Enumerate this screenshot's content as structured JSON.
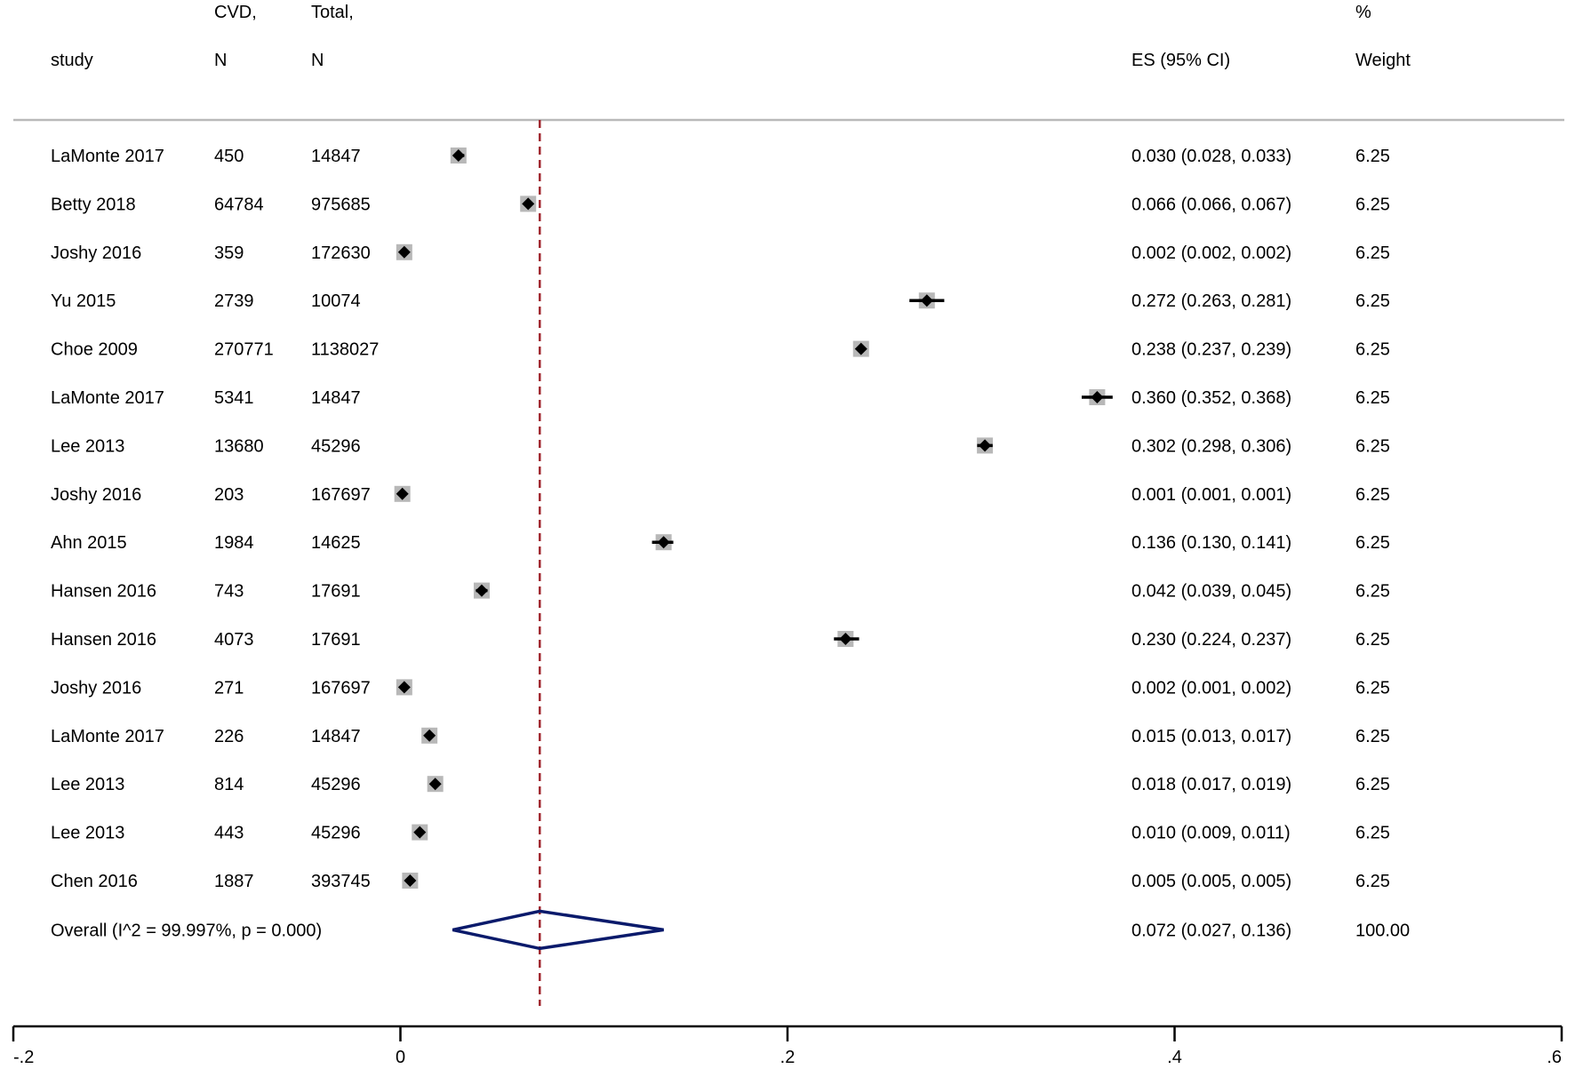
{
  "header": {
    "study": "study",
    "cvd_line1": "CVD,",
    "cvd_line2": "N",
    "total_line1": "Total,",
    "total_line2": "N",
    "es": "ES (95% CI)",
    "weight_line1": "%",
    "weight_line2": "Weight"
  },
  "colors": {
    "reference_line": "#a0262e",
    "overall_diamond": "#0a1a6b",
    "weight_box": "#b8b8b8",
    "marker": "#000000"
  },
  "chart_data": {
    "type": "forest",
    "xlim": [
      -0.2,
      0.6
    ],
    "x_ticks": [
      -0.2,
      0,
      0.2,
      0.4,
      0.6
    ],
    "x_tick_labels": [
      "-.2",
      "0",
      ".2",
      ".4",
      ".6"
    ],
    "reference_line": 0.072,
    "studies": [
      {
        "study": "LaMonte 2017",
        "cvd_n": "450",
        "total_n": "14847",
        "es": 0.03,
        "lo": 0.028,
        "hi": 0.033,
        "es_text": "0.030 (0.028, 0.033)",
        "weight": "6.25"
      },
      {
        "study": "Betty 2018",
        "cvd_n": "64784",
        "total_n": "975685",
        "es": 0.066,
        "lo": 0.066,
        "hi": 0.067,
        "es_text": "0.066 (0.066, 0.067)",
        "weight": "6.25"
      },
      {
        "study": "Joshy 2016",
        "cvd_n": "359",
        "total_n": "172630",
        "es": 0.002,
        "lo": 0.002,
        "hi": 0.002,
        "es_text": "0.002 (0.002, 0.002)",
        "weight": "6.25"
      },
      {
        "study": "Yu 2015",
        "cvd_n": "2739",
        "total_n": "10074",
        "es": 0.272,
        "lo": 0.263,
        "hi": 0.281,
        "es_text": "0.272 (0.263, 0.281)",
        "weight": "6.25"
      },
      {
        "study": "Choe 2009",
        "cvd_n": "270771",
        "total_n": "1138027",
        "es": 0.238,
        "lo": 0.237,
        "hi": 0.239,
        "es_text": "0.238 (0.237, 0.239)",
        "weight": "6.25"
      },
      {
        "study": "LaMonte 2017",
        "cvd_n": "5341",
        "total_n": "14847",
        "es": 0.36,
        "lo": 0.352,
        "hi": 0.368,
        "es_text": "0.360 (0.352, 0.368)",
        "weight": "6.25"
      },
      {
        "study": "Lee 2013",
        "cvd_n": "13680",
        "total_n": "45296",
        "es": 0.302,
        "lo": 0.298,
        "hi": 0.306,
        "es_text": "0.302 (0.298, 0.306)",
        "weight": "6.25"
      },
      {
        "study": "Joshy 2016",
        "cvd_n": "203",
        "total_n": "167697",
        "es": 0.001,
        "lo": 0.001,
        "hi": 0.001,
        "es_text": "0.001 (0.001, 0.001)",
        "weight": "6.25"
      },
      {
        "study": "Ahn 2015",
        "cvd_n": "1984",
        "total_n": "14625",
        "es": 0.136,
        "lo": 0.13,
        "hi": 0.141,
        "es_text": "0.136 (0.130, 0.141)",
        "weight": "6.25"
      },
      {
        "study": "Hansen 2016",
        "cvd_n": "743",
        "total_n": "17691",
        "es": 0.042,
        "lo": 0.039,
        "hi": 0.045,
        "es_text": "0.042 (0.039, 0.045)",
        "weight": "6.25"
      },
      {
        "study": "Hansen 2016",
        "cvd_n": "4073",
        "total_n": "17691",
        "es": 0.23,
        "lo": 0.224,
        "hi": 0.237,
        "es_text": "0.230 (0.224, 0.237)",
        "weight": "6.25"
      },
      {
        "study": "Joshy 2016",
        "cvd_n": "271",
        "total_n": "167697",
        "es": 0.002,
        "lo": 0.001,
        "hi": 0.002,
        "es_text": "0.002 (0.001, 0.002)",
        "weight": "6.25"
      },
      {
        "study": "LaMonte 2017",
        "cvd_n": "226",
        "total_n": "14847",
        "es": 0.015,
        "lo": 0.013,
        "hi": 0.017,
        "es_text": "0.015 (0.013, 0.017)",
        "weight": "6.25"
      },
      {
        "study": "Lee 2013",
        "cvd_n": "814",
        "total_n": "45296",
        "es": 0.018,
        "lo": 0.017,
        "hi": 0.019,
        "es_text": "0.018 (0.017, 0.019)",
        "weight": "6.25"
      },
      {
        "study": "Lee 2013",
        "cvd_n": "443",
        "total_n": "45296",
        "es": 0.01,
        "lo": 0.009,
        "hi": 0.011,
        "es_text": "0.010 (0.009, 0.011)",
        "weight": "6.25"
      },
      {
        "study": "Chen 2016",
        "cvd_n": "1887",
        "total_n": "393745",
        "es": 0.005,
        "lo": 0.005,
        "hi": 0.005,
        "es_text": "0.005 (0.005, 0.005)",
        "weight": "6.25"
      }
    ],
    "overall": {
      "label": "Overall  (I^2 = 99.997%, p = 0.000)",
      "es": 0.072,
      "lo": 0.027,
      "hi": 0.136,
      "es_text": "0.072 (0.027, 0.136)",
      "weight": "100.00"
    }
  }
}
